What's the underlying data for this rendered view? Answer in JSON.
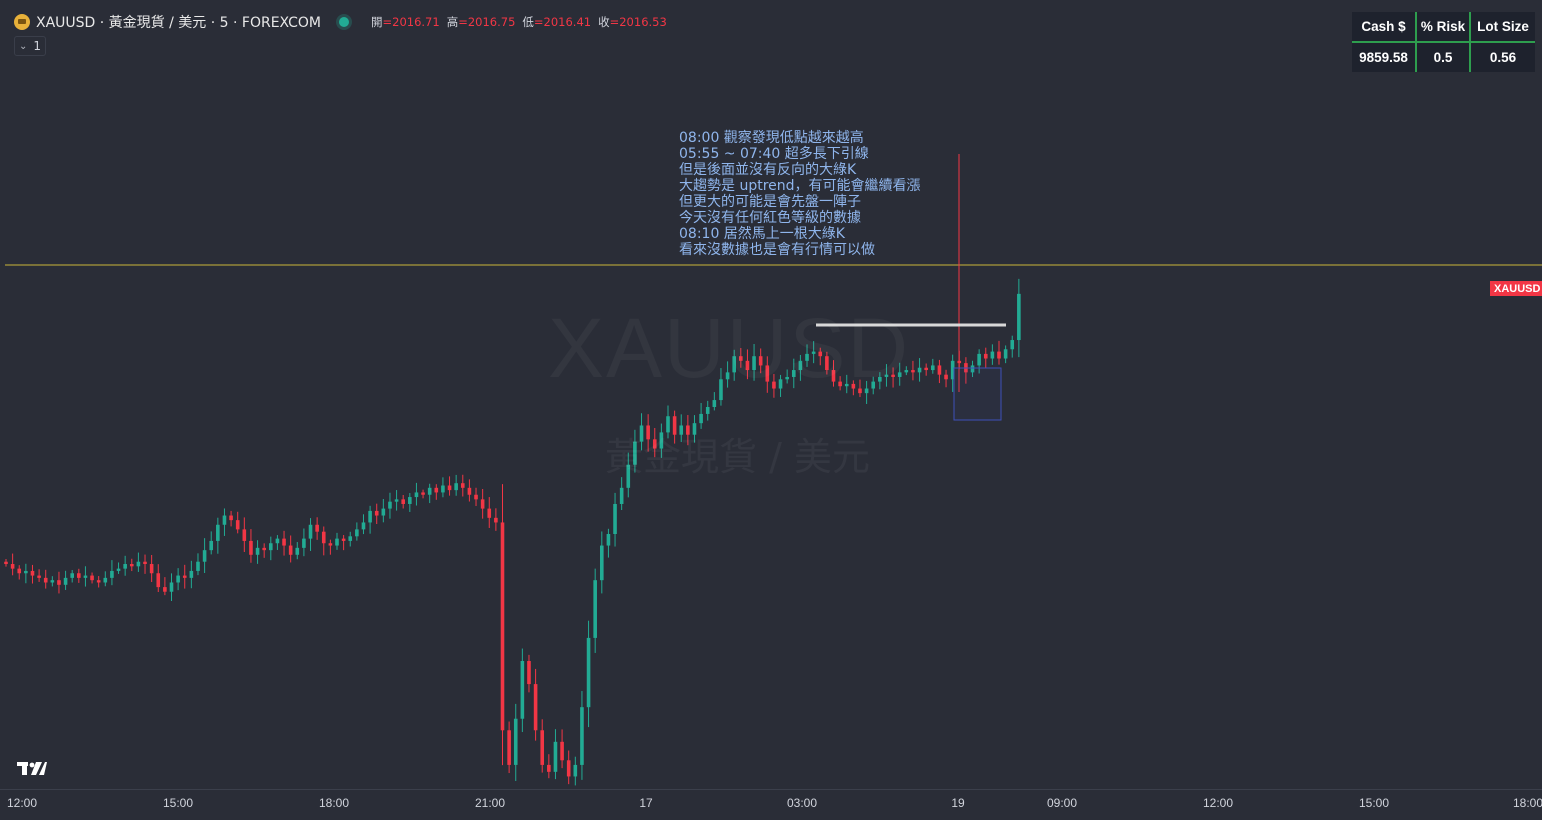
{
  "header": {
    "title": "XAUUSD · 黃金現貨 / 美元 · 5 · FOREXCOM",
    "ohlc": {
      "open_label": "開",
      "open": "=2016.71",
      "high_label": "高",
      "high": "=2016.75",
      "low_label": "低",
      "low": "=2016.41",
      "close_label": "收",
      "close": "=2016.53"
    },
    "indicator_count": "1"
  },
  "risk_table": {
    "headers": [
      "Cash $",
      "% Risk",
      "Lot Size"
    ],
    "values": [
      "9859.58",
      "0.5",
      "0.56"
    ]
  },
  "note_lines": [
    "08:00 觀察發現低點越來越高",
    "05:55 ~ 07:40 超多長下引線",
    "但是後面並沒有反向的大綠K",
    "大趨勢是 uptrend，有可能會繼續看漲",
    "但更大的可能是會先盤一陣子",
    "今天沒有任何紅色等級的數據",
    "08:10 居然馬上一根大綠K",
    "看來沒數據也是會有行情可以做"
  ],
  "watermark": {
    "symbol": "XAUUSD",
    "description": "黃金現貨 / 美元"
  },
  "price_tag": "XAUUSD",
  "time_axis": [
    "12:00",
    "15:00",
    "18:00",
    "21:00",
    "17",
    "03:00",
    "19",
    "09:00",
    "12:00",
    "15:00",
    "18:00"
  ],
  "colors": {
    "up": "#22ab94",
    "down": "#f23645",
    "background": "#2a2d37",
    "note": "#8fb5ec",
    "hline": "#c9b53a",
    "vline": "#f23645"
  },
  "chart_data": {
    "type": "candlestick",
    "symbol": "XAUUSD",
    "interval": "5",
    "closes": [
      2013.2,
      2013.0,
      2012.8,
      2012.9,
      2012.7,
      2012.6,
      2012.4,
      2012.5,
      2012.3,
      2012.6,
      2012.8,
      2012.6,
      2012.7,
      2012.5,
      2012.4,
      2012.6,
      2012.9,
      2013.0,
      2013.2,
      2013.1,
      2013.3,
      2013.2,
      2012.8,
      2012.2,
      2012.0,
      2012.4,
      2012.7,
      2012.6,
      2012.9,
      2013.3,
      2013.8,
      2014.2,
      2014.9,
      2015.3,
      2015.1,
      2014.7,
      2014.2,
      2013.6,
      2013.9,
      2013.8,
      2014.1,
      2014.3,
      2014.0,
      2013.6,
      2013.9,
      2014.3,
      2014.9,
      2014.6,
      2014.1,
      2014.0,
      2014.3,
      2014.2,
      2014.4,
      2014.7,
      2015.0,
      2015.5,
      2015.3,
      2015.6,
      2015.9,
      2016.0,
      2015.8,
      2016.1,
      2016.3,
      2016.2,
      2016.5,
      2016.3,
      2016.6,
      2016.4,
      2016.7,
      2016.5,
      2016.2,
      2016.0,
      2015.6,
      2015.2,
      2015.0,
      2006.0,
      2004.5,
      2006.5,
      2009.0,
      2008.0,
      2006.0,
      2004.5,
      2004.2,
      2005.5,
      2004.7,
      2004.0,
      2004.5,
      2007.0,
      2010.0,
      2012.5,
      2014.0,
      2014.5,
      2015.8,
      2016.5,
      2017.5,
      2018.5,
      2019.2,
      2018.6,
      2018.2,
      2018.9,
      2019.6,
      2018.8,
      2019.2,
      2018.8,
      2019.3,
      2019.7,
      2020.0,
      2020.3,
      2021.2,
      2021.5,
      2022.2,
      2022.0,
      2021.6,
      2022.2,
      2021.8,
      2021.1,
      2020.8,
      2021.2,
      2021.3,
      2021.6,
      2022.0,
      2022.3,
      2022.4,
      2022.2,
      2021.6,
      2021.1,
      2020.9,
      2021.0,
      2020.8,
      2020.6,
      2020.8,
      2021.1,
      2021.3,
      2021.4,
      2021.3,
      2021.5,
      2021.6,
      2021.5,
      2021.7,
      2021.6,
      2021.8,
      2021.4,
      2021.2,
      2022.0,
      2021.9,
      2021.5,
      2021.8,
      2022.3,
      2022.1,
      2022.4,
      2022.1,
      2022.5,
      2022.9,
      2024.9
    ],
    "annotations": {
      "horizontal_line": "yellow",
      "vertical_line": "red",
      "box": "blue rectangle",
      "resistance": "white line"
    }
  }
}
